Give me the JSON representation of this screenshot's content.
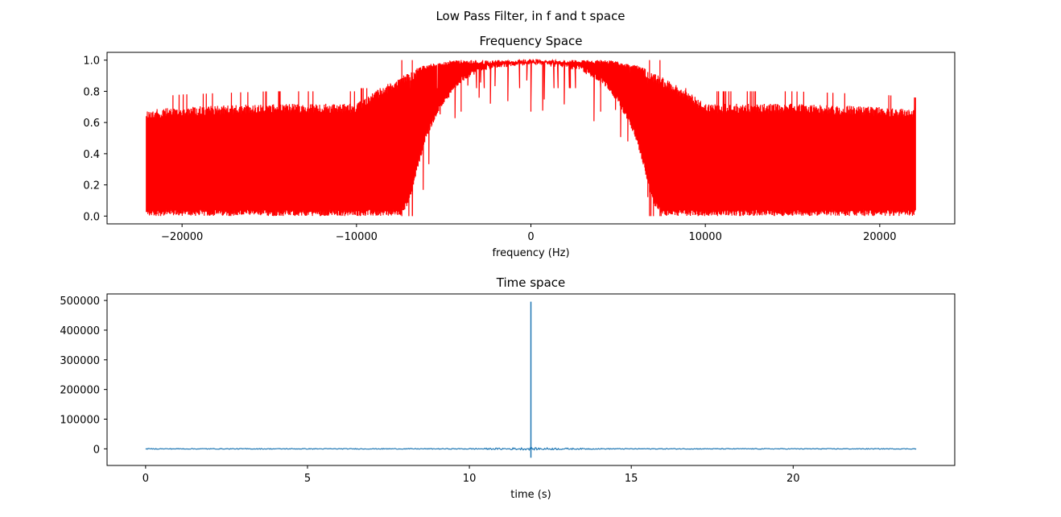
{
  "figure": {
    "suptitle": "Low Pass Filter, in f and t space"
  },
  "chart_data": [
    {
      "type": "line",
      "title": "Frequency Space",
      "xlabel": "frequency (Hz)",
      "ylabel": "",
      "xlim": [
        -24300,
        24300
      ],
      "ylim": [
        -0.05,
        1.05
      ],
      "xticks": [
        -20000,
        -10000,
        0,
        10000,
        20000
      ],
      "xtick_labels": [
        "−20000",
        "−10000",
        "0",
        "10000",
        "20000"
      ],
      "yticks": [
        0.0,
        0.2,
        0.4,
        0.6,
        0.8,
        1.0
      ],
      "ytick_labels": [
        "0.0",
        "0.2",
        "0.4",
        "0.6",
        "0.8",
        "1.0"
      ],
      "grid": false,
      "series": [
        {
          "color": "#ff0000",
          "x_range": [
            -22050,
            22050
          ],
          "profile": {
            "x": [
              -22050,
              -20000,
              -15000,
              -10000,
              -9000,
              -8000,
              -7500,
              -7000,
              -6500,
              -6000,
              -5500,
              -5000,
              -4500,
              -4000,
              -3000,
              -2000,
              -1000,
              0,
              1000,
              2000,
              3000,
              4000,
              4500,
              5000,
              5500,
              6000,
              6500,
              7000,
              7500,
              8000,
              9000,
              10000,
              15000,
              20000,
              22050
            ],
            "upper": [
              0.68,
              0.7,
              0.72,
              0.72,
              0.8,
              0.86,
              0.9,
              0.92,
              0.95,
              0.97,
              0.98,
              0.99,
              1.0,
              1.0,
              1.0,
              1.0,
              1.0,
              1.0,
              1.0,
              1.0,
              1.0,
              1.0,
              1.0,
              0.99,
              0.98,
              0.97,
              0.95,
              0.92,
              0.9,
              0.86,
              0.8,
              0.72,
              0.72,
              0.7,
              0.68
            ],
            "lower": [
              0.0,
              0.0,
              0.0,
              0.0,
              0.0,
              0.0,
              0.0,
              0.08,
              0.3,
              0.5,
              0.62,
              0.72,
              0.8,
              0.86,
              0.92,
              0.95,
              0.96,
              0.97,
              0.96,
              0.95,
              0.92,
              0.86,
              0.8,
              0.72,
              0.62,
              0.5,
              0.3,
              0.08,
              0.0,
              0.0,
              0.0,
              0.0,
              0.0,
              0.0,
              0.0
            ]
          },
          "dips": [
            {
              "x": 0,
              "y": 0.67
            },
            {
              "x": -4000,
              "y": 0.67
            },
            {
              "x": 4000,
              "y": 0.67
            },
            {
              "x": -6800,
              "y": 0.0
            },
            {
              "x": 6800,
              "y": 0.0
            },
            {
              "x": -7400,
              "y": 0.0
            },
            {
              "x": 7400,
              "y": 0.0
            }
          ]
        }
      ]
    },
    {
      "type": "line",
      "title": "Time space",
      "xlabel": "time (s)",
      "ylabel": "",
      "xlim": [
        -1.19,
        24.99
      ],
      "ylim": [
        -56000,
        522000
      ],
      "xticks": [
        0,
        5,
        10,
        15,
        20
      ],
      "xtick_labels": [
        "0",
        "5",
        "10",
        "15",
        "20"
      ],
      "yticks": [
        0,
        100000,
        200000,
        300000,
        400000,
        500000
      ],
      "ytick_labels": [
        "0",
        "100000",
        "200000",
        "300000",
        "400000",
        "500000"
      ],
      "grid": false,
      "series": [
        {
          "color": "#1f77b4",
          "x_range": [
            0,
            23.8
          ],
          "baseline": 0,
          "peak": {
            "x": 11.9,
            "y": 496000,
            "min_y": -30000
          },
          "noise_amplitude": 2500
        }
      ]
    }
  ]
}
